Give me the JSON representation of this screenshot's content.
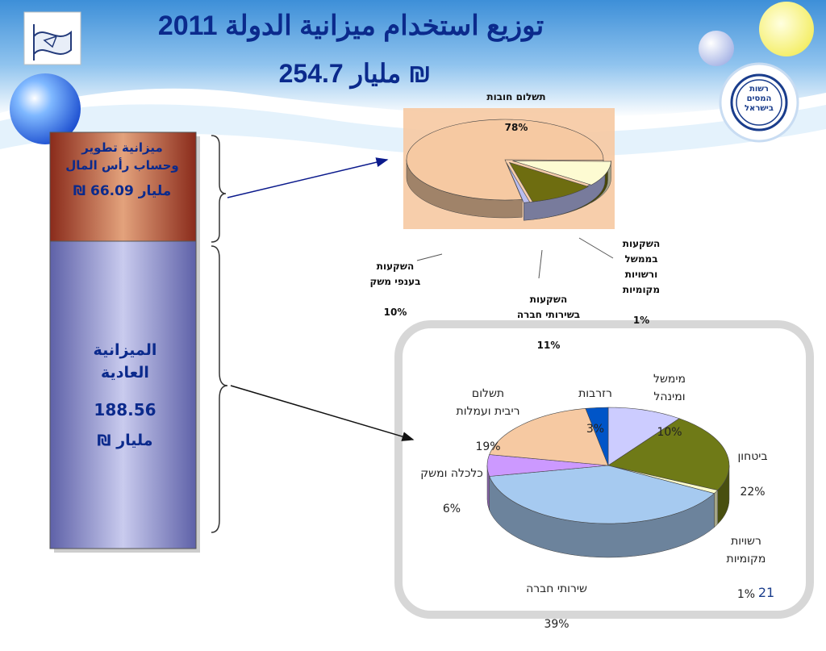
{
  "header": {
    "title": "2011 توزيع استخدام ميزانية الدولة",
    "total_value": "254.7",
    "total_unit": "مليار ₪"
  },
  "left_bar": {
    "dev": {
      "line1": "ميزانية تطوير",
      "line2": "وحساب رأس المال",
      "value": "66.09",
      "unit": "مليار",
      "currency": "₪"
    },
    "regular": {
      "line1": "الميزانية",
      "line2": "العادية",
      "value": "188.56",
      "unit": "مليار",
      "currency": "₪"
    }
  },
  "page_number": "21",
  "colors": {
    "title_blue": "#0b2a8c",
    "dev_block": "#c0643c",
    "regular_block": "#8c8fc8",
    "debt_peach": "#f6c9a2",
    "invest_economy": "#fdfbd2",
    "invest_social": "#6e6d10",
    "invest_govt": "#b9bdf0",
    "governance": "#ccccff",
    "security": "#6f7a17",
    "local_authorities": "#ffffcc",
    "social_services": "#a6caf0",
    "economy": "#cc99ff",
    "interest": "#f6c9a2",
    "reserves": "#0055c8"
  },
  "chart_data": [
    {
      "type": "pie",
      "description_labels": true,
      "slices": [
        {
          "label": "תשלום חובות",
          "value": 78,
          "display": "78%"
        },
        {
          "label": "השקעות בענפי משק",
          "value": 10,
          "display": "10%"
        },
        {
          "label": "השקעות בשירותי חברה",
          "value": 11,
          "display": "11%"
        },
        {
          "label": "השקעות בממשל ורשויות מקומיות",
          "value": 1,
          "display": "1%"
        }
      ]
    },
    {
      "type": "pie",
      "slices": [
        {
          "label": "מימשל ומינהל",
          "value": 10,
          "display": "10%"
        },
        {
          "label": "ביטחון",
          "value": 22,
          "display": "22%"
        },
        {
          "label": "רשויות מקומיות",
          "value": 1,
          "display": "1%"
        },
        {
          "label": "שירותי חברה",
          "value": 39,
          "display": "39%"
        },
        {
          "label": "כלכלה ומשק",
          "value": 6,
          "display": "6%"
        },
        {
          "label": "תשלום ריבית ועמלות",
          "value": 19,
          "display": "19%"
        },
        {
          "label": "רזרבות",
          "value": 3,
          "display": "3%"
        }
      ]
    }
  ],
  "top_labels": {
    "debt": {
      "text": "תשלום חובות",
      "pct": "78%"
    },
    "econ": {
      "text": "השקעות\nבענפי משק",
      "pct": "10%"
    },
    "social": {
      "text": "השקעות\nבשירותי חברה",
      "pct": "11%"
    },
    "govt": {
      "text": "השקעות\nבממשל\nורשויות\nמקומיות",
      "pct": "1%"
    }
  },
  "bottom_labels": {
    "governance": {
      "text": "מימשל\nומינהל",
      "pct": "10%"
    },
    "security": {
      "text": "ביטחון",
      "pct": "22%"
    },
    "local": {
      "text": "רשויות\nמקומיות",
      "pct": "1%"
    },
    "social": {
      "text": "שירותי חברה",
      "pct": "39%"
    },
    "economy": {
      "text": "כלכלה ומשק",
      "pct": "6%"
    },
    "interest": {
      "text": "תשלום\nריבית ועמלות",
      "pct": "19%"
    },
    "reserves": {
      "text": "רזרבות",
      "pct": "3%"
    }
  },
  "logo": {
    "line1": "רשות",
    "line2": "המסים",
    "line3": "בישראל"
  }
}
